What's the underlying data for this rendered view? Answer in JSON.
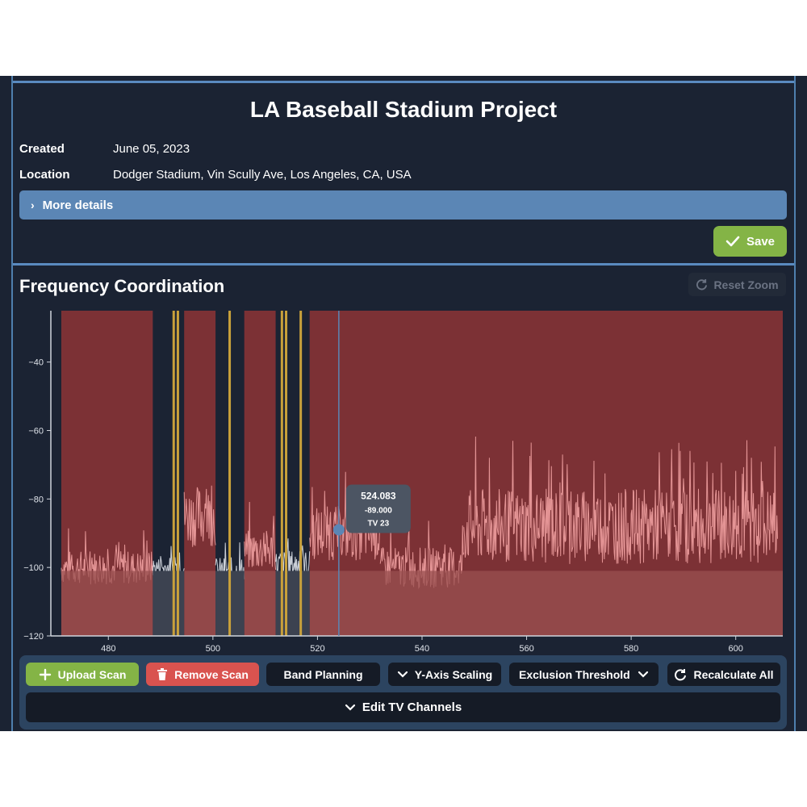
{
  "project": {
    "title": "LA Baseball Stadium Project",
    "created_label": "Created",
    "created_value": "June 05, 2023",
    "location_label": "Location",
    "location_value": "Dodger Stadium, Vin Scully Ave, Los Angeles, CA, USA",
    "more_details_label": "More details",
    "save_label": "Save"
  },
  "coordination": {
    "title": "Frequency Coordination",
    "reset_zoom_label": "Reset Zoom"
  },
  "toolbar": {
    "upload_scan": "Upload Scan",
    "remove_scan": "Remove Scan",
    "band_planning": "Band Planning",
    "y_axis_scaling": "Y-Axis Scaling",
    "exclusion_threshold": "Exclusion Threshold",
    "recalculate_all": "Recalculate All",
    "edit_tv_channels": "Edit TV Channels"
  },
  "colors": {
    "background": "#1b2333",
    "accent_blue": "#5b86b5",
    "save_green": "#84b446",
    "remove_red": "#d9534f",
    "exclusion_red": "#7c3135",
    "trace": "#f0a0a0",
    "marker_gold": "#c9a13b"
  },
  "chart_data": {
    "type": "line",
    "xlabel": "",
    "ylabel": "",
    "xlim": [
      469,
      609
    ],
    "ylim": [
      -120,
      -25
    ],
    "x_ticks": [
      480,
      500,
      520,
      540,
      560,
      580,
      600
    ],
    "y_ticks": [
      -40,
      -60,
      -80,
      -100,
      -120
    ],
    "exclusion_threshold": -101,
    "tv_channel_exclusions": [
      [
        471,
        488.5
      ],
      [
        494.5,
        500.5
      ],
      [
        506,
        512
      ],
      [
        518.5,
        609
      ]
    ],
    "gold_markers": [
      492.5,
      493.3,
      503.2,
      513.2,
      514.0,
      516.8
    ],
    "cursor": {
      "x": 524.083,
      "y": -89.0,
      "label": "TV 23",
      "x_text": "524.083",
      "y_text": "-89.000"
    },
    "scan_segments": [
      {
        "x0": 471,
        "x1": 488.5,
        "base": -100,
        "amp": 5
      },
      {
        "x0": 488.5,
        "x1": 494.5,
        "base": -100,
        "amp": 3
      },
      {
        "x0": 494.5,
        "x1": 500.5,
        "base": -85,
        "amp": 9
      },
      {
        "x0": 500.5,
        "x1": 506,
        "base": -101,
        "amp": 4
      },
      {
        "x0": 506,
        "x1": 512,
        "base": -95,
        "amp": 6
      },
      {
        "x0": 512,
        "x1": 518.5,
        "base": -99,
        "amp": 4
      },
      {
        "x0": 518.5,
        "x1": 532,
        "base": -90,
        "amp": 8
      },
      {
        "x0": 532,
        "x1": 548,
        "base": -100,
        "amp": 6
      },
      {
        "x0": 548,
        "x1": 608,
        "base": -88,
        "amp": 11
      }
    ]
  }
}
